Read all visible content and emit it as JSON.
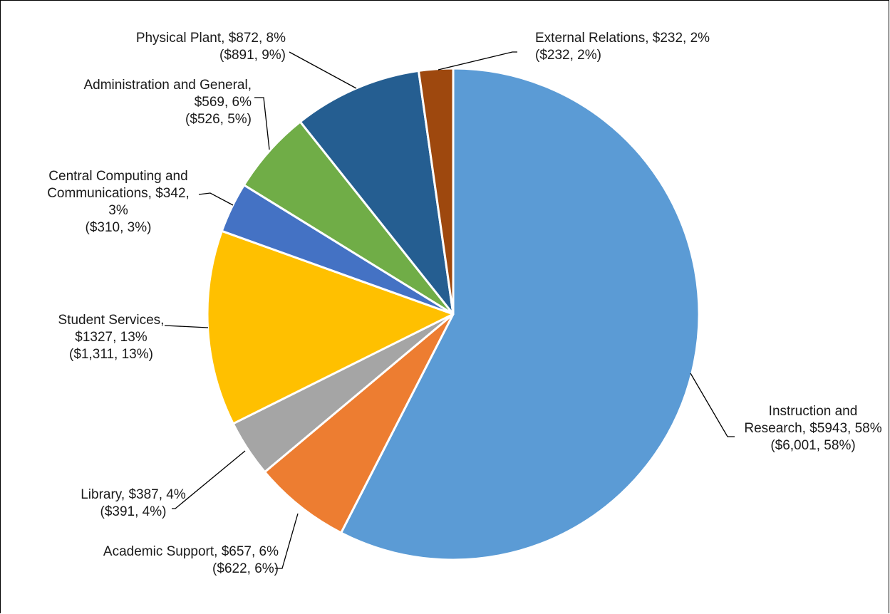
{
  "chart_data": {
    "type": "pie",
    "title": "",
    "start_angle_deg": 0,
    "direction": "clockwise",
    "slices": [
      {
        "name": "Instruction and Research",
        "value": 5943,
        "percent": 58,
        "prior_value": 6001,
        "prior_percent": 58,
        "color": "#5b9bd5",
        "label_lines": [
          "Instruction and",
          "Research, $5943, 58%",
          "($6,001, 58%)"
        ]
      },
      {
        "name": "Academic Support",
        "value": 657,
        "percent": 6,
        "prior_value": 622,
        "prior_percent": 6,
        "color": "#ed7d31",
        "label_lines": [
          "Academic Support, $657, 6%",
          "($622, 6%)"
        ]
      },
      {
        "name": "Library",
        "value": 387,
        "percent": 4,
        "prior_value": 391,
        "prior_percent": 4,
        "color": "#a5a5a5",
        "label_lines": [
          "Library, $387, 4%",
          "($391, 4%)"
        ]
      },
      {
        "name": "Student Services",
        "value": 1327,
        "percent": 13,
        "prior_value": 1311,
        "prior_percent": 13,
        "color": "#ffc000",
        "label_lines": [
          "Student Services,",
          "$1327, 13%",
          "($1,311, 13%)"
        ]
      },
      {
        "name": "Central Computing and Communications",
        "value": 342,
        "percent": 3,
        "prior_value": 310,
        "prior_percent": 3,
        "color": "#4472c4",
        "label_lines": [
          "Central Computing and",
          "Communications, $342,",
          "3%",
          "($310, 3%)"
        ]
      },
      {
        "name": "Administration and General",
        "value": 569,
        "percent": 6,
        "prior_value": 526,
        "prior_percent": 5,
        "color": "#70ad47",
        "label_lines": [
          "Administration and General,",
          "$569, 6%",
          "($526, 5%)"
        ]
      },
      {
        "name": "Physical Plant",
        "value": 872,
        "percent": 8,
        "prior_value": 891,
        "prior_percent": 9,
        "color": "#255e91",
        "label_lines": [
          "Physical Plant, $872, 8%",
          "($891, 9%)"
        ]
      },
      {
        "name": "External Relations",
        "value": 232,
        "percent": 2,
        "prior_value": 232,
        "prior_percent": 2,
        "color": "#9e480e",
        "label_lines": [
          "External Relations, $232, 2%",
          "($232, 2%)"
        ]
      }
    ]
  }
}
